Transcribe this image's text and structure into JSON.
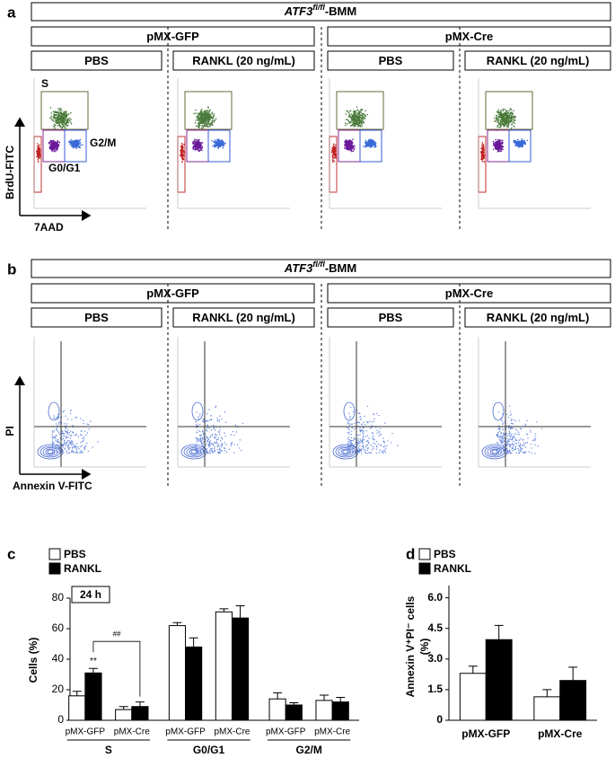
{
  "panels": [
    {
      "letter": "a",
      "header": {
        "gene": "ATF3",
        "sup": "fl/fl",
        "suffix": "-BMM"
      },
      "groups": [
        "pMX-GFP",
        "pMX-Cre"
      ],
      "conditions": [
        "PBS",
        "RANKL (20 ng/mL)",
        "PBS",
        "RANKL (20 ng/mL)"
      ],
      "gate_labels": [
        "S",
        "G2/M",
        "G0/G1"
      ],
      "y_label": "BrdU-FITC",
      "x_label": "7AAD"
    },
    {
      "letter": "b",
      "header": {
        "gene": "ATF3",
        "sup": "fl/fl",
        "suffix": "-BMM"
      },
      "groups": [
        "pMX-GFP",
        "pMX-Cre"
      ],
      "conditions": [
        "PBS",
        "RANKL (20 ng/mL)",
        "PBS",
        "RANKL (20 ng/mL)"
      ],
      "y_label": "PI",
      "x_label": "Annexin V-FITC"
    }
  ],
  "chart_data": [
    {
      "type": "bar",
      "letter": "c",
      "y_label": "Cells  (%)",
      "box_label": "24 h",
      "categories": [
        "pMX-GFP",
        "pMX-Cre",
        "pMX-GFP",
        "pMX-Cre",
        "pMX-GFP",
        "pMX-Cre"
      ],
      "groups": [
        "S",
        "G0/G1",
        "G2/M"
      ],
      "series": [
        {
          "name": "PBS",
          "color": "#ffffff",
          "values": [
            16,
            7,
            62,
            71,
            14,
            13
          ],
          "errors": [
            3,
            2,
            2,
            2,
            4,
            3.5
          ]
        },
        {
          "name": "RANKL",
          "color": "#000000",
          "values": [
            31,
            9,
            48,
            67,
            10,
            12
          ],
          "errors": [
            3,
            3,
            6,
            8,
            1.5,
            3
          ]
        }
      ],
      "annotations": [
        "**",
        "##"
      ],
      "ylim": [
        0,
        80
      ],
      "yticks": [
        0,
        20,
        40,
        60,
        80
      ]
    },
    {
      "type": "bar",
      "letter": "d",
      "y_label": "Annexin V⁺PI⁻ cells",
      "y_label_unit": "(%)",
      "categories": [
        "pMX-GFP",
        "pMX-Cre"
      ],
      "series": [
        {
          "name": "PBS",
          "color": "#ffffff",
          "values": [
            2.3,
            1.15
          ],
          "errors": [
            0.35,
            0.35
          ]
        },
        {
          "name": "RANKL",
          "color": "#000000",
          "values": [
            3.95,
            1.95
          ],
          "errors": [
            0.7,
            0.65
          ]
        }
      ],
      "ylim": [
        0,
        6.6
      ],
      "yticks": [
        0,
        1.5,
        {
          "value": 3,
          "label": "3.0"
        },
        4.5,
        {
          "value": 6,
          "label": "6.0"
        }
      ]
    }
  ]
}
